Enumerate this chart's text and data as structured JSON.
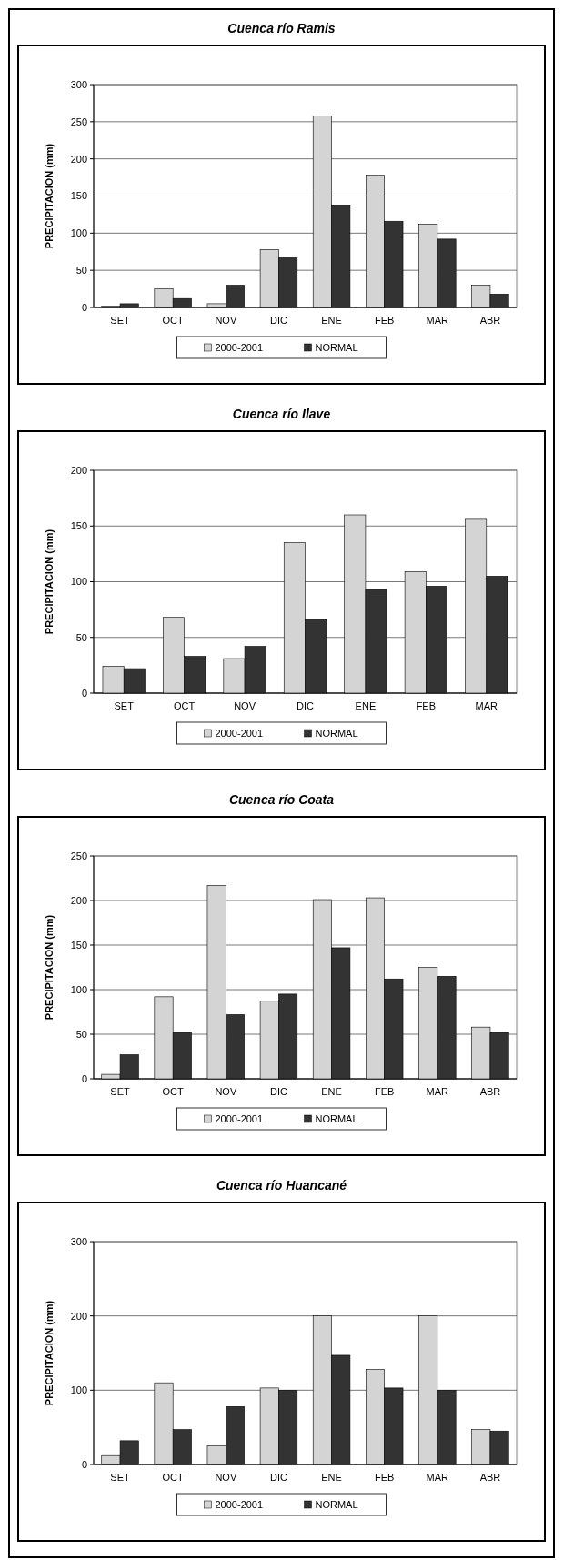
{
  "chart_data": [
    {
      "type": "bar",
      "title": "Cuenca río Ramis",
      "ylabel": "PRECIPITACION (mm)",
      "categories": [
        "SET",
        "OCT",
        "NOV",
        "DIC",
        "ENE",
        "FEB",
        "MAR",
        "ABR"
      ],
      "series": [
        {
          "name": "2000-2001",
          "color": "#d4d4d4",
          "values": [
            2,
            25,
            5,
            78,
            258,
            178,
            112,
            30
          ]
        },
        {
          "name": "NORMAL",
          "color": "#333333",
          "values": [
            5,
            12,
            30,
            68,
            138,
            116,
            92,
            18
          ]
        }
      ],
      "ylim": [
        0,
        300
      ],
      "yticks": [
        0,
        50,
        100,
        150,
        200,
        250,
        300
      ],
      "grid": "y",
      "legend": "bottom"
    },
    {
      "type": "bar",
      "title": "Cuenca río Ilave",
      "ylabel": "PRECIPITACION (mm)",
      "categories": [
        "SET",
        "OCT",
        "NOV",
        "DIC",
        "ENE",
        "FEB",
        "MAR"
      ],
      "series": [
        {
          "name": "2000-2001",
          "color": "#d4d4d4",
          "values": [
            24,
            68,
            31,
            135,
            160,
            109,
            156
          ]
        },
        {
          "name": "NORMAL",
          "color": "#333333",
          "values": [
            22,
            33,
            42,
            66,
            93,
            96,
            105
          ]
        }
      ],
      "ylim": [
        0,
        200
      ],
      "yticks": [
        0,
        50,
        100,
        150,
        200
      ],
      "grid": "y",
      "legend": "bottom"
    },
    {
      "type": "bar",
      "title": "Cuenca río Coata",
      "ylabel": "PRECIPITACION (mm)",
      "categories": [
        "SET",
        "OCT",
        "NOV",
        "DIC",
        "ENE",
        "FEB",
        "MAR",
        "ABR"
      ],
      "series": [
        {
          "name": "2000-2001",
          "color": "#d4d4d4",
          "values": [
            5,
            92,
            217,
            87,
            201,
            203,
            125,
            58
          ]
        },
        {
          "name": "NORMAL",
          "color": "#333333",
          "values": [
            27,
            52,
            72,
            95,
            147,
            112,
            115,
            52
          ]
        }
      ],
      "ylim": [
        0,
        250
      ],
      "yticks": [
        0,
        50,
        100,
        150,
        200,
        250
      ],
      "grid": "y",
      "legend": "bottom"
    },
    {
      "type": "bar",
      "title": "Cuenca río Huancané",
      "ylabel": "PRECIPITACION (mm)",
      "categories": [
        "SET",
        "OCT",
        "NOV",
        "DIC",
        "ENE",
        "FEB",
        "MAR",
        "ABR"
      ],
      "series": [
        {
          "name": "2000-2001",
          "color": "#d4d4d4",
          "values": [
            12,
            110,
            25,
            103,
            200,
            128,
            200,
            47
          ]
        },
        {
          "name": "NORMAL",
          "color": "#333333",
          "values": [
            32,
            47,
            78,
            100,
            147,
            103,
            100,
            45
          ]
        }
      ],
      "ylim": [
        0,
        300
      ],
      "yticks": [
        0,
        100,
        200,
        300
      ],
      "grid": "y",
      "legend": "bottom"
    }
  ]
}
